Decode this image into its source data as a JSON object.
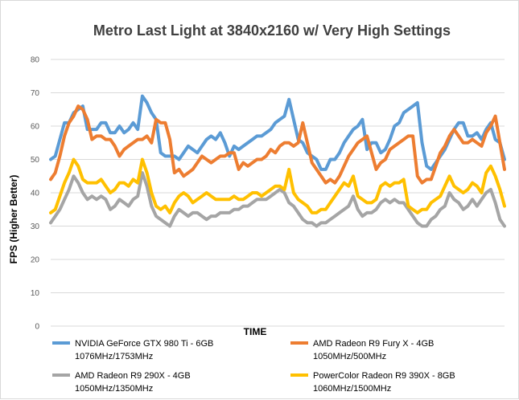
{
  "chart_data": {
    "type": "line",
    "title": "Metro Last Light at 3840x2160 w/ Very High Settings",
    "xlabel": "TIME",
    "ylabel": "FPS (Higher Better)",
    "ylim": [
      0,
      80
    ],
    "yticks": [
      0,
      10,
      20,
      30,
      40,
      50,
      60,
      70,
      80
    ],
    "grid": true,
    "legend_position": "bottom",
    "series": [
      {
        "name": "NVIDIA GeForce GTX 980 Ti - 6GB",
        "detail": "1076MHz/1753MHz",
        "color": "#5b9bd5",
        "values": [
          50,
          51,
          56,
          61,
          61,
          64,
          65,
          66,
          59,
          59,
          59,
          61,
          61,
          58,
          58,
          60,
          58,
          59,
          61,
          59,
          69,
          67,
          64,
          62,
          52,
          51,
          51,
          51,
          50,
          52,
          54,
          53,
          52,
          54,
          56,
          57,
          56,
          58,
          55,
          51,
          54,
          53,
          54,
          55,
          56,
          57,
          57,
          58,
          59,
          61,
          62,
          63,
          68,
          62,
          56,
          55,
          52,
          51,
          50,
          47,
          47,
          50,
          50,
          52,
          55,
          57,
          59,
          60,
          62,
          53,
          55,
          55,
          52,
          53,
          56,
          60,
          61,
          64,
          65,
          66,
          67,
          55,
          48,
          47,
          49,
          51,
          53,
          56,
          59,
          61,
          61,
          57,
          57,
          58,
          56,
          59,
          61,
          56,
          55,
          50
        ]
      },
      {
        "name": "AMD Radeon R9 Fury X - 4GB",
        "detail": "1050MHz/500MHz",
        "color": "#ed7d31",
        "values": [
          44,
          46,
          51,
          57,
          61,
          63,
          66,
          65,
          62,
          56,
          57,
          57,
          56,
          56,
          54,
          51,
          53,
          54,
          55,
          56,
          56,
          57,
          55,
          62,
          61,
          61,
          56,
          46,
          47,
          45,
          46,
          47,
          49,
          51,
          50,
          49,
          50,
          51,
          51,
          52,
          52,
          47,
          49,
          48,
          49,
          50,
          50,
          51,
          53,
          52,
          54,
          55,
          55,
          54,
          55,
          61,
          55,
          49,
          47,
          45,
          43,
          44,
          43,
          45,
          48,
          51,
          53,
          55,
          56,
          57,
          52,
          47,
          49,
          50,
          53,
          54,
          55,
          56,
          57,
          57,
          45,
          43,
          44,
          44,
          48,
          52,
          54,
          57,
          59,
          57,
          55,
          55,
          56,
          55,
          54,
          58,
          60,
          63,
          55,
          47
        ]
      },
      {
        "name": "AMD Radeon R9 290X - 4GB",
        "detail": "1050MHz/1350MHz",
        "color": "#a5a5a5",
        "values": [
          31,
          33,
          35,
          38,
          41,
          45,
          43,
          40,
          38,
          39,
          38,
          39,
          38,
          35,
          36,
          38,
          37,
          36,
          38,
          39,
          46,
          42,
          36,
          33,
          32,
          31,
          30,
          33,
          35,
          34,
          33,
          34,
          34,
          33,
          32,
          33,
          33,
          34,
          34,
          34,
          35,
          35,
          36,
          36,
          37,
          38,
          38,
          38,
          39,
          40,
          41,
          40,
          37,
          36,
          34,
          32,
          31,
          31,
          30,
          31,
          31,
          32,
          33,
          34,
          35,
          36,
          39,
          35,
          33,
          34,
          34,
          35,
          37,
          38,
          37,
          38,
          37,
          37,
          35,
          33,
          31,
          30,
          30,
          32,
          33,
          35,
          36,
          40,
          38,
          37,
          35,
          36,
          38,
          36,
          38,
          40,
          41,
          37,
          32,
          30
        ]
      },
      {
        "name": "PowerColor Radeon R9 390X - 8GB",
        "detail": "1060MHz/1500MHz",
        "color": "#ffc000",
        "values": [
          34,
          35,
          39,
          43,
          46,
          50,
          48,
          44,
          43,
          43,
          43,
          44,
          42,
          40,
          41,
          43,
          43,
          42,
          44,
          43,
          50,
          46,
          40,
          36,
          35,
          36,
          34,
          37,
          39,
          40,
          39,
          37,
          38,
          39,
          40,
          39,
          38,
          38,
          38,
          38,
          39,
          38,
          38,
          39,
          40,
          40,
          39,
          40,
          41,
          42,
          42,
          41,
          47,
          40,
          38,
          37,
          36,
          34,
          34,
          35,
          35,
          37,
          39,
          41,
          43,
          42,
          45,
          39,
          38,
          37,
          37,
          38,
          42,
          43,
          42,
          43,
          43,
          44,
          36,
          35,
          34,
          35,
          35,
          37,
          38,
          39,
          42,
          45,
          42,
          41,
          40,
          41,
          43,
          42,
          40,
          46,
          48,
          45,
          41,
          36
        ]
      }
    ]
  }
}
